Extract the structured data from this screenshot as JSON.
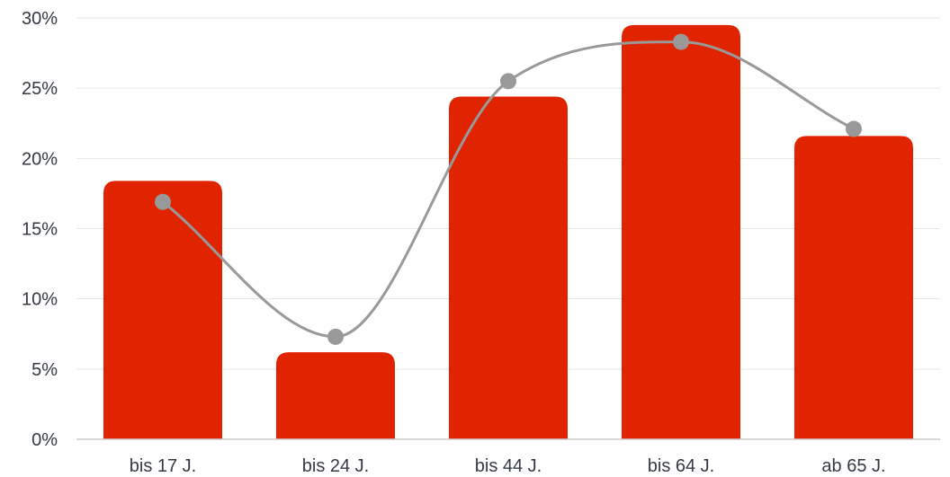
{
  "chart_data": {
    "type": "bar",
    "title": "",
    "xlabel": "",
    "ylabel": "",
    "categories": [
      "bis 17 J.",
      "bis 24 J.",
      "bis 44 J.",
      "bis 64 J.",
      "ab 65 J."
    ],
    "series": [
      {
        "type": "bar",
        "values": [
          18.4,
          6.2,
          24.4,
          29.5,
          21.6
        ],
        "color": "#e02400"
      },
      {
        "type": "line",
        "smooth": true,
        "markers": true,
        "values": [
          16.9,
          7.3,
          25.5,
          28.3,
          22.1
        ],
        "color": "#999999"
      }
    ],
    "ylim": [
      0,
      30
    ],
    "yticks": [
      0,
      5,
      10,
      15,
      20,
      25,
      30
    ],
    "ytick_labels": [
      "0%",
      "5%",
      "10%",
      "15%",
      "20%",
      "25%",
      "30%"
    ],
    "grid": true,
    "legend": "none"
  }
}
